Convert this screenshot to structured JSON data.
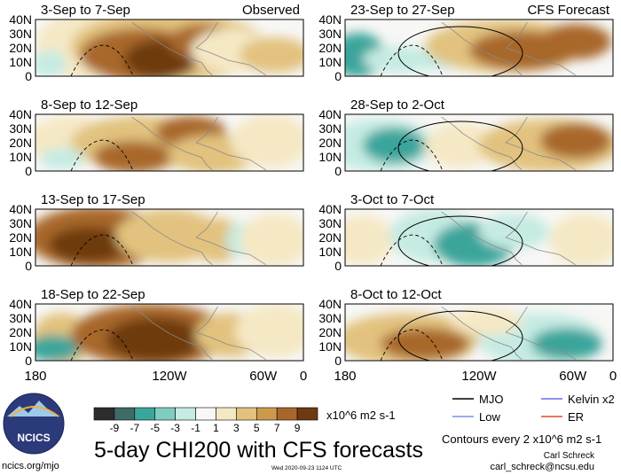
{
  "panels": [
    {
      "id": "p1",
      "title": "3-Sep to 7-Sep",
      "tag": "Observed",
      "column": "observed",
      "row": 0
    },
    {
      "id": "p2",
      "title": "8-Sep to 12-Sep",
      "tag": "",
      "column": "observed",
      "row": 1
    },
    {
      "id": "p3",
      "title": "13-Sep to 17-Sep",
      "tag": "",
      "column": "observed",
      "row": 2
    },
    {
      "id": "p4",
      "title": "18-Sep to 22-Sep",
      "tag": "",
      "column": "observed",
      "row": 3
    },
    {
      "id": "p5",
      "title": "23-Sep to 27-Sep",
      "tag": "CFS Forecast",
      "column": "forecast",
      "row": 0
    },
    {
      "id": "p6",
      "title": "28-Sep to 2-Oct",
      "tag": "",
      "column": "forecast",
      "row": 1
    },
    {
      "id": "p7",
      "title": "3-Oct to 7-Oct",
      "tag": "",
      "column": "forecast",
      "row": 2
    },
    {
      "id": "p8",
      "title": "8-Oct to 12-Oct",
      "tag": "",
      "column": "forecast",
      "row": 3
    }
  ],
  "lat_ticks": [
    "40N",
    "30N",
    "20N",
    "10N",
    "0"
  ],
  "lon_ticks": [
    "180",
    "120W",
    "60W",
    "0"
  ],
  "colorbar": {
    "ticks": [
      "-9",
      "-7",
      "-5",
      "-3",
      "-1",
      "1",
      "3",
      "5",
      "7",
      "9"
    ],
    "unit": "x10^6 m2 s-1",
    "colors": [
      "#2d2d2d",
      "#3f6b66",
      "#3aa59b",
      "#7fcdc1",
      "#c5ebe3",
      "#f7f7f5",
      "#f5e8c4",
      "#e2c27e",
      "#cd9a4d",
      "#a8672a",
      "#6e3a10"
    ]
  },
  "legend": [
    {
      "label": "MJO",
      "color": "#000000"
    },
    {
      "label": "Kelvin x2",
      "color": "#6d6df0"
    },
    {
      "label": "Low",
      "color": "#7c8ff0"
    },
    {
      "label": "ER",
      "color": "#e04a1e"
    }
  ],
  "logo": {
    "text": "NCICS"
  },
  "main_title": "5-day CHI200 with CFS forecasts",
  "contour_note": "Contours every 2 x10^6 m2 s-1",
  "author": "Carl Schreck",
  "email": "carl_schreck@ncsu.edu",
  "website": "ncics.org/mjo",
  "timestamp": "Wed 2020-09-23 1124 UTC",
  "colors": {
    "brown_dark": "#6e3a10",
    "brown": "#a8672a",
    "tan": "#e2c27e",
    "cream": "#f5e8c4",
    "teal": "#3aa59b",
    "teal_light": "#c5ebe3",
    "coast": "#8a8a8a"
  }
}
